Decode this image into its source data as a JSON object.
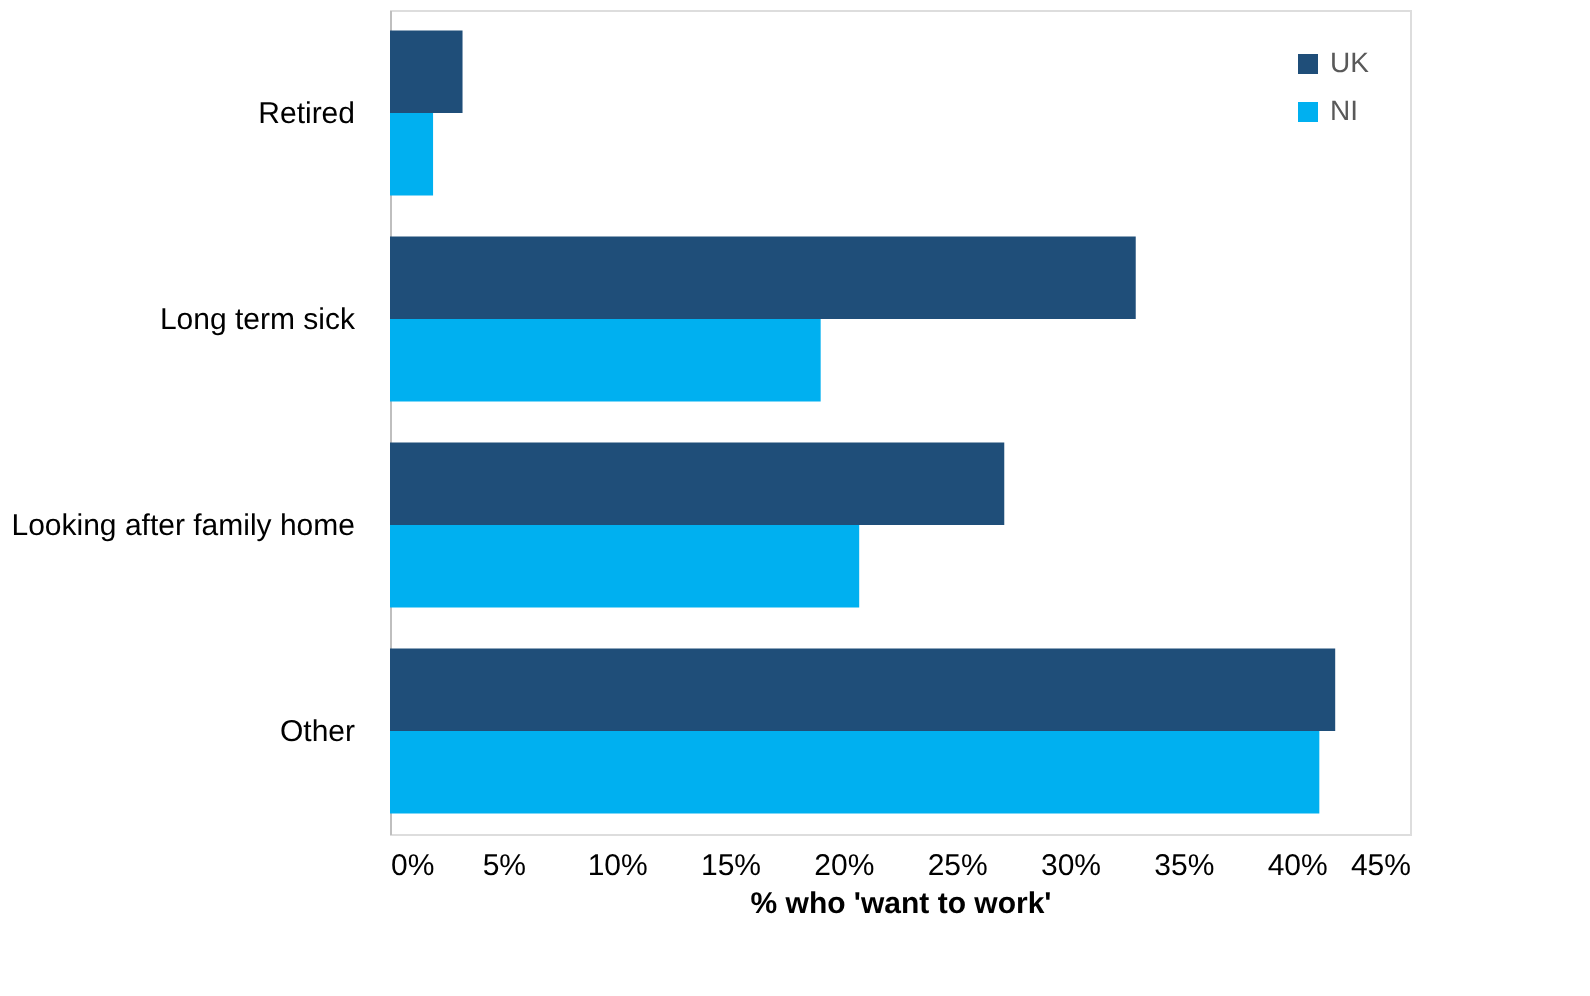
{
  "chart_data": {
    "type": "bar",
    "orientation": "horizontal",
    "xlabel": "% who 'want to work'",
    "categories": [
      "Retired",
      "Long term sick",
      "Looking after family home",
      "Other"
    ],
    "series": [
      {
        "name": "UK",
        "color": "#1f4e79",
        "values": [
          3.2,
          32.9,
          27.1,
          41.7
        ]
      },
      {
        "name": "NI",
        "color": "#00b0f0",
        "values": [
          1.9,
          19.0,
          20.7,
          41.0
        ]
      }
    ],
    "xlim": [
      0,
      45
    ],
    "xticks": [
      {
        "value": 0,
        "label": "0%"
      },
      {
        "value": 5,
        "label": "5%"
      },
      {
        "value": 10,
        "label": "10%"
      },
      {
        "value": 15,
        "label": "15%"
      },
      {
        "value": 20,
        "label": "20%"
      },
      {
        "value": 25,
        "label": "25%"
      },
      {
        "value": 30,
        "label": "30%"
      },
      {
        "value": 35,
        "label": "35%"
      },
      {
        "value": 40,
        "label": "40%"
      },
      {
        "value": 45,
        "label": "45%"
      }
    ],
    "grid": false,
    "legend": "top right"
  }
}
